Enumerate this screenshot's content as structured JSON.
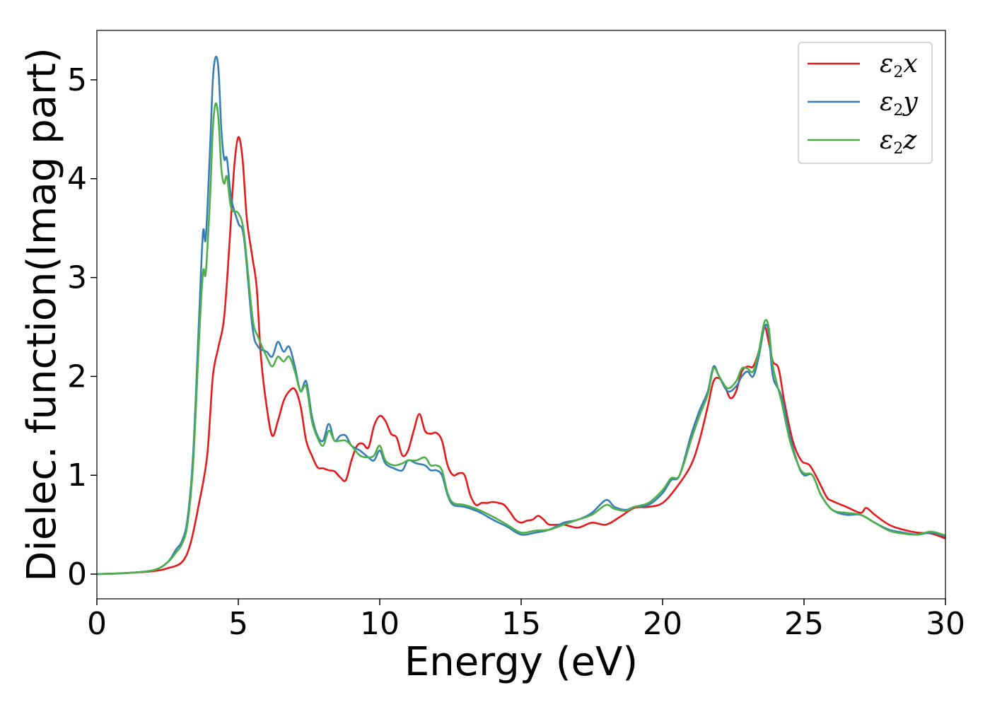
{
  "chart_data": {
    "type": "line",
    "title": "",
    "xlabel": "Energy (eV)",
    "ylabel": "Dielec. function(Imag part)",
    "xlim": [
      0,
      30
    ],
    "ylim": [
      -0.25,
      5.5
    ],
    "xticks": [
      0,
      5,
      10,
      15,
      20,
      25,
      30
    ],
    "yticks": [
      0,
      1,
      2,
      3,
      4,
      5
    ],
    "xtick_labels": [
      "0",
      "5",
      "10",
      "15",
      "20",
      "25",
      "30"
    ],
    "ytick_labels": [
      "0",
      "1",
      "2",
      "3",
      "4",
      "5"
    ],
    "grid": false,
    "legend_position": "top-right",
    "series": [
      {
        "name": "ε2x",
        "legend_base": "ε",
        "legend_sub": "2",
        "legend_var": "x",
        "color": "#e41a1c",
        "points": [
          [
            0,
            0
          ],
          [
            1,
            0.01
          ],
          [
            2,
            0.03
          ],
          [
            2.5,
            0.06
          ],
          [
            3.0,
            0.12
          ],
          [
            3.3,
            0.3
          ],
          [
            3.6,
            0.7
          ],
          [
            3.9,
            1.2
          ],
          [
            4.1,
            2.0
          ],
          [
            4.3,
            2.3
          ],
          [
            4.5,
            2.6
          ],
          [
            4.7,
            3.4
          ],
          [
            4.85,
            4.1
          ],
          [
            5.0,
            4.42
          ],
          [
            5.15,
            4.2
          ],
          [
            5.3,
            3.6
          ],
          [
            5.5,
            3.2
          ],
          [
            5.65,
            2.9
          ],
          [
            5.8,
            2.2
          ],
          [
            6.0,
            1.7
          ],
          [
            6.2,
            1.4
          ],
          [
            6.4,
            1.55
          ],
          [
            6.6,
            1.75
          ],
          [
            6.8,
            1.85
          ],
          [
            7.0,
            1.87
          ],
          [
            7.2,
            1.7
          ],
          [
            7.4,
            1.35
          ],
          [
            7.6,
            1.2
          ],
          [
            7.8,
            1.08
          ],
          [
            8.0,
            1.07
          ],
          [
            8.2,
            1.05
          ],
          [
            8.4,
            1.04
          ],
          [
            8.6,
            0.98
          ],
          [
            8.8,
            0.95
          ],
          [
            9.0,
            1.15
          ],
          [
            9.2,
            1.3
          ],
          [
            9.4,
            1.32
          ],
          [
            9.6,
            1.28
          ],
          [
            9.8,
            1.5
          ],
          [
            10.0,
            1.6
          ],
          [
            10.2,
            1.55
          ],
          [
            10.4,
            1.42
          ],
          [
            10.6,
            1.38
          ],
          [
            10.8,
            1.2
          ],
          [
            11.0,
            1.25
          ],
          [
            11.2,
            1.45
          ],
          [
            11.4,
            1.62
          ],
          [
            11.6,
            1.45
          ],
          [
            11.8,
            1.42
          ],
          [
            12.0,
            1.43
          ],
          [
            12.2,
            1.35
          ],
          [
            12.4,
            1.1
          ],
          [
            12.6,
            1.0
          ],
          [
            12.8,
            1.02
          ],
          [
            13.0,
            1.0
          ],
          [
            13.2,
            0.8
          ],
          [
            13.4,
            0.7
          ],
          [
            13.6,
            0.72
          ],
          [
            13.8,
            0.72
          ],
          [
            14.0,
            0.73
          ],
          [
            14.2,
            0.72
          ],
          [
            14.4,
            0.7
          ],
          [
            14.6,
            0.63
          ],
          [
            14.8,
            0.55
          ],
          [
            15.0,
            0.52
          ],
          [
            15.2,
            0.54
          ],
          [
            15.4,
            0.55
          ],
          [
            15.6,
            0.59
          ],
          [
            15.8,
            0.55
          ],
          [
            16.0,
            0.5
          ],
          [
            16.5,
            0.5
          ],
          [
            17.0,
            0.47
          ],
          [
            17.5,
            0.52
          ],
          [
            18.0,
            0.5
          ],
          [
            18.5,
            0.58
          ],
          [
            19.0,
            0.67
          ],
          [
            19.5,
            0.68
          ],
          [
            20.0,
            0.72
          ],
          [
            20.5,
            0.88
          ],
          [
            21.0,
            1.1
          ],
          [
            21.3,
            1.35
          ],
          [
            21.6,
            1.7
          ],
          [
            21.8,
            1.95
          ],
          [
            22.0,
            1.98
          ],
          [
            22.2,
            1.9
          ],
          [
            22.4,
            1.78
          ],
          [
            22.6,
            1.85
          ],
          [
            22.8,
            2.05
          ],
          [
            23.0,
            2.1
          ],
          [
            23.2,
            2.1
          ],
          [
            23.4,
            2.25
          ],
          [
            23.6,
            2.5
          ],
          [
            23.75,
            2.35
          ],
          [
            23.9,
            2.15
          ],
          [
            24.1,
            2.08
          ],
          [
            24.3,
            1.75
          ],
          [
            24.6,
            1.35
          ],
          [
            24.9,
            1.15
          ],
          [
            25.2,
            1.1
          ],
          [
            25.5,
            0.95
          ],
          [
            25.8,
            0.78
          ],
          [
            26.0,
            0.74
          ],
          [
            26.5,
            0.68
          ],
          [
            27.0,
            0.62
          ],
          [
            27.2,
            0.67
          ],
          [
            27.5,
            0.6
          ],
          [
            28.0,
            0.5
          ],
          [
            28.5,
            0.45
          ],
          [
            29.0,
            0.42
          ],
          [
            29.5,
            0.41
          ],
          [
            30.0,
            0.36
          ]
        ]
      },
      {
        "name": "ε2y",
        "legend_base": "ε",
        "legend_sub": "2",
        "legend_var": "y",
        "color": "#377eb8",
        "points": [
          [
            0,
            0
          ],
          [
            1,
            0.01
          ],
          [
            2,
            0.04
          ],
          [
            2.5,
            0.12
          ],
          [
            2.8,
            0.25
          ],
          [
            3.0,
            0.33
          ],
          [
            3.2,
            0.55
          ],
          [
            3.4,
            1.2
          ],
          [
            3.6,
            2.5
          ],
          [
            3.75,
            3.45
          ],
          [
            3.85,
            3.4
          ],
          [
            4.0,
            4.3
          ],
          [
            4.1,
            5.0
          ],
          [
            4.2,
            5.23
          ],
          [
            4.3,
            5.1
          ],
          [
            4.4,
            4.5
          ],
          [
            4.5,
            4.2
          ],
          [
            4.6,
            4.2
          ],
          [
            4.75,
            3.8
          ],
          [
            5.0,
            3.55
          ],
          [
            5.2,
            3.4
          ],
          [
            5.5,
            2.5
          ],
          [
            5.7,
            2.3
          ],
          [
            6.0,
            2.25
          ],
          [
            6.2,
            2.2
          ],
          [
            6.4,
            2.35
          ],
          [
            6.6,
            2.25
          ],
          [
            6.8,
            2.3
          ],
          [
            7.0,
            2.1
          ],
          [
            7.2,
            1.85
          ],
          [
            7.4,
            1.95
          ],
          [
            7.6,
            1.6
          ],
          [
            7.8,
            1.4
          ],
          [
            8.0,
            1.35
          ],
          [
            8.2,
            1.52
          ],
          [
            8.4,
            1.35
          ],
          [
            8.6,
            1.4
          ],
          [
            8.8,
            1.4
          ],
          [
            9.0,
            1.3
          ],
          [
            9.3,
            1.25
          ],
          [
            9.6,
            1.18
          ],
          [
            9.8,
            1.15
          ],
          [
            10.0,
            1.25
          ],
          [
            10.2,
            1.12
          ],
          [
            10.5,
            1.07
          ],
          [
            10.8,
            1.05
          ],
          [
            11.0,
            1.15
          ],
          [
            11.3,
            1.12
          ],
          [
            11.6,
            1.1
          ],
          [
            11.8,
            1.05
          ],
          [
            12.0,
            1.05
          ],
          [
            12.2,
            1.0
          ],
          [
            12.4,
            0.8
          ],
          [
            12.6,
            0.7
          ],
          [
            13.0,
            0.68
          ],
          [
            13.5,
            0.63
          ],
          [
            14.0,
            0.55
          ],
          [
            14.5,
            0.48
          ],
          [
            15.0,
            0.4
          ],
          [
            15.5,
            0.42
          ],
          [
            16.0,
            0.45
          ],
          [
            16.5,
            0.52
          ],
          [
            17.0,
            0.55
          ],
          [
            17.5,
            0.62
          ],
          [
            18.0,
            0.75
          ],
          [
            18.3,
            0.68
          ],
          [
            18.7,
            0.65
          ],
          [
            19.0,
            0.68
          ],
          [
            19.5,
            0.7
          ],
          [
            20.0,
            0.82
          ],
          [
            20.3,
            0.95
          ],
          [
            20.6,
            1.0
          ],
          [
            21.0,
            1.4
          ],
          [
            21.3,
            1.65
          ],
          [
            21.6,
            1.85
          ],
          [
            21.8,
            2.1
          ],
          [
            22.0,
            2.0
          ],
          [
            22.3,
            1.85
          ],
          [
            22.6,
            1.9
          ],
          [
            22.8,
            2.0
          ],
          [
            23.0,
            2.05
          ],
          [
            23.2,
            2.0
          ],
          [
            23.4,
            2.2
          ],
          [
            23.6,
            2.5
          ],
          [
            23.75,
            2.45
          ],
          [
            23.9,
            2.0
          ],
          [
            24.2,
            1.8
          ],
          [
            24.5,
            1.4
          ],
          [
            24.8,
            1.1
          ],
          [
            25.0,
            1.0
          ],
          [
            25.3,
            1.0
          ],
          [
            25.6,
            0.8
          ],
          [
            26.0,
            0.65
          ],
          [
            26.5,
            0.6
          ],
          [
            27.0,
            0.6
          ],
          [
            27.5,
            0.52
          ],
          [
            28.0,
            0.45
          ],
          [
            28.5,
            0.42
          ],
          [
            29.0,
            0.4
          ],
          [
            29.5,
            0.42
          ],
          [
            30.0,
            0.38
          ]
        ]
      },
      {
        "name": "ε2z",
        "legend_base": "ε",
        "legend_sub": "2",
        "legend_var": "z",
        "color": "#4daf4a",
        "points": [
          [
            0,
            0
          ],
          [
            1,
            0.01
          ],
          [
            2,
            0.04
          ],
          [
            2.5,
            0.12
          ],
          [
            2.8,
            0.22
          ],
          [
            3.0,
            0.3
          ],
          [
            3.2,
            0.5
          ],
          [
            3.4,
            1.1
          ],
          [
            3.6,
            2.3
          ],
          [
            3.75,
            3.05
          ],
          [
            3.85,
            3.05
          ],
          [
            4.0,
            3.8
          ],
          [
            4.1,
            4.5
          ],
          [
            4.2,
            4.76
          ],
          [
            4.3,
            4.6
          ],
          [
            4.4,
            4.1
          ],
          [
            4.5,
            3.95
          ],
          [
            4.6,
            4.02
          ],
          [
            4.75,
            3.7
          ],
          [
            5.0,
            3.65
          ],
          [
            5.2,
            3.45
          ],
          [
            5.5,
            2.6
          ],
          [
            5.7,
            2.4
          ],
          [
            6.0,
            2.2
          ],
          [
            6.2,
            2.1
          ],
          [
            6.4,
            2.2
          ],
          [
            6.6,
            2.15
          ],
          [
            6.8,
            2.2
          ],
          [
            7.0,
            2.05
          ],
          [
            7.2,
            1.85
          ],
          [
            7.4,
            1.9
          ],
          [
            7.6,
            1.55
          ],
          [
            7.8,
            1.38
          ],
          [
            8.0,
            1.3
          ],
          [
            8.2,
            1.45
          ],
          [
            8.4,
            1.35
          ],
          [
            8.6,
            1.35
          ],
          [
            8.8,
            1.35
          ],
          [
            9.0,
            1.3
          ],
          [
            9.3,
            1.2
          ],
          [
            9.6,
            1.18
          ],
          [
            9.8,
            1.2
          ],
          [
            10.0,
            1.3
          ],
          [
            10.2,
            1.15
          ],
          [
            10.5,
            1.1
          ],
          [
            10.8,
            1.12
          ],
          [
            11.0,
            1.15
          ],
          [
            11.3,
            1.15
          ],
          [
            11.6,
            1.18
          ],
          [
            11.8,
            1.1
          ],
          [
            12.0,
            1.1
          ],
          [
            12.2,
            1.05
          ],
          [
            12.4,
            0.82
          ],
          [
            12.6,
            0.72
          ],
          [
            13.0,
            0.7
          ],
          [
            13.5,
            0.65
          ],
          [
            14.0,
            0.58
          ],
          [
            14.5,
            0.5
          ],
          [
            15.0,
            0.42
          ],
          [
            15.5,
            0.44
          ],
          [
            16.0,
            0.45
          ],
          [
            16.5,
            0.5
          ],
          [
            17.0,
            0.55
          ],
          [
            17.5,
            0.6
          ],
          [
            18.0,
            0.7
          ],
          [
            18.3,
            0.66
          ],
          [
            18.7,
            0.64
          ],
          [
            19.0,
            0.68
          ],
          [
            19.5,
            0.72
          ],
          [
            20.0,
            0.85
          ],
          [
            20.3,
            0.97
          ],
          [
            20.6,
            1.0
          ],
          [
            21.0,
            1.35
          ],
          [
            21.3,
            1.6
          ],
          [
            21.6,
            1.82
          ],
          [
            21.8,
            2.08
          ],
          [
            22.0,
            2.0
          ],
          [
            22.3,
            1.88
          ],
          [
            22.6,
            1.95
          ],
          [
            22.8,
            2.08
          ],
          [
            23.0,
            2.08
          ],
          [
            23.2,
            2.05
          ],
          [
            23.4,
            2.25
          ],
          [
            23.6,
            2.55
          ],
          [
            23.75,
            2.5
          ],
          [
            23.9,
            2.1
          ],
          [
            24.2,
            1.75
          ],
          [
            24.5,
            1.35
          ],
          [
            24.8,
            1.1
          ],
          [
            25.0,
            1.02
          ],
          [
            25.3,
            1.0
          ],
          [
            25.6,
            0.8
          ],
          [
            26.0,
            0.65
          ],
          [
            26.5,
            0.62
          ],
          [
            27.0,
            0.6
          ],
          [
            27.5,
            0.52
          ],
          [
            28.0,
            0.44
          ],
          [
            28.5,
            0.41
          ],
          [
            29.0,
            0.4
          ],
          [
            29.5,
            0.43
          ],
          [
            30.0,
            0.39
          ]
        ]
      }
    ]
  }
}
